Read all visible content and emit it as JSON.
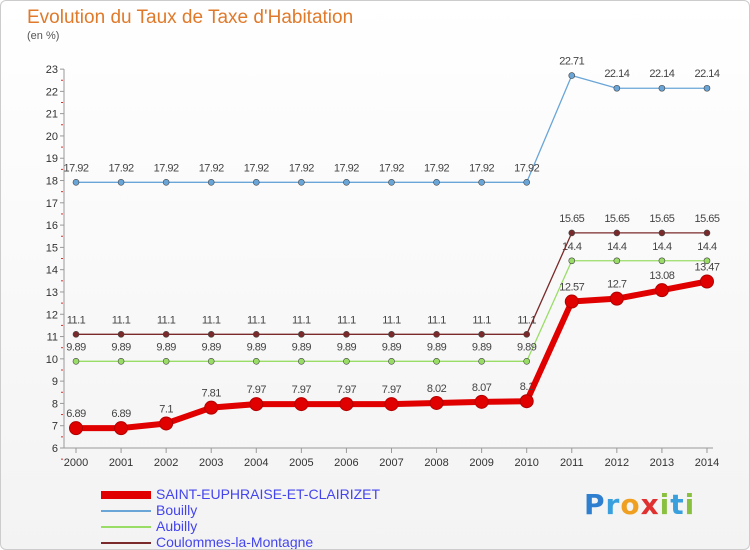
{
  "chart_data": {
    "type": "line",
    "title": "Evolution du Taux de Taxe d'Habitation",
    "subtitle": "(en %)",
    "x": [
      "2000",
      "2001",
      "2002",
      "2003",
      "2004",
      "2005",
      "2006",
      "2007",
      "2008",
      "2009",
      "2010",
      "2011",
      "2012",
      "2013",
      "2014"
    ],
    "ylim": [
      6,
      23
    ],
    "yticks": [
      6,
      7,
      8,
      9,
      10,
      11,
      12,
      13,
      14,
      15,
      16,
      17,
      18,
      19,
      20,
      21,
      22,
      23
    ],
    "grid": false,
    "legend_position": "bottom-left",
    "series": [
      {
        "name": "SAINT-EUPHRAISE-ET-CLAIRIZET",
        "color": "#e00000",
        "values": [
          6.89,
          6.89,
          7.1,
          7.81,
          7.97,
          7.97,
          7.97,
          7.97,
          8.02,
          8.07,
          8.1,
          12.57,
          12.7,
          13.08,
          13.47
        ],
        "labels": [
          "6.89",
          "6.89",
          "7.1",
          "7.81",
          "7.97",
          "7.97",
          "7.97",
          "7.97",
          "8.02",
          "8.07",
          "8.1",
          "12.57",
          "12.7",
          "13.08",
          "13.47"
        ]
      },
      {
        "name": "Bouilly",
        "color": "#6aa5d8",
        "values": [
          17.92,
          17.92,
          17.92,
          17.92,
          17.92,
          17.92,
          17.92,
          17.92,
          17.92,
          17.92,
          17.92,
          22.71,
          22.14,
          22.14,
          22.14
        ],
        "labels": [
          "17.92",
          "17.92",
          "17.92",
          "17.92",
          "17.92",
          "17.92",
          "17.92",
          "17.92",
          "17.92",
          "17.92",
          "17.92",
          "22.71",
          "22.14",
          "22.14",
          "22.14"
        ]
      },
      {
        "name": "Aubilly",
        "color": "#99dd66",
        "values": [
          9.89,
          9.89,
          9.89,
          9.89,
          9.89,
          9.89,
          9.89,
          9.89,
          9.89,
          9.89,
          9.89,
          14.4,
          14.4,
          14.4,
          14.4
        ],
        "labels": [
          "9.89",
          "9.89",
          "9.89",
          "9.89",
          "9.89",
          "9.89",
          "9.89",
          "9.89",
          "9.89",
          "9.89",
          "9.89",
          "14.4",
          "14.4",
          "14.4",
          "14.4"
        ]
      },
      {
        "name": "Coulommes-la-Montagne",
        "color": "#7a2a2a",
        "values": [
          11.1,
          11.1,
          11.1,
          11.1,
          11.1,
          11.1,
          11.1,
          11.1,
          11.1,
          11.1,
          11.1,
          15.65,
          15.65,
          15.65,
          15.65
        ],
        "labels": [
          "11.1",
          "11.1",
          "11.1",
          "11.1",
          "11.1",
          "11.1",
          "11.1",
          "11.1",
          "11.1",
          "11.1",
          "11.1",
          "15.65",
          "15.65",
          "15.65",
          "15.65"
        ]
      }
    ]
  },
  "logo": {
    "letters": [
      {
        "ch": "P",
        "color": "#2f7fd0"
      },
      {
        "ch": "r",
        "color": "#3aa0dd"
      },
      {
        "ch": "o",
        "color": "#f0a020"
      },
      {
        "ch": "x",
        "color": "#e03030"
      },
      {
        "ch": "i",
        "color": "#8ac040"
      },
      {
        "ch": "t",
        "color": "#3aa0dd"
      },
      {
        "ch": "i",
        "color": "#8ac040"
      }
    ]
  }
}
